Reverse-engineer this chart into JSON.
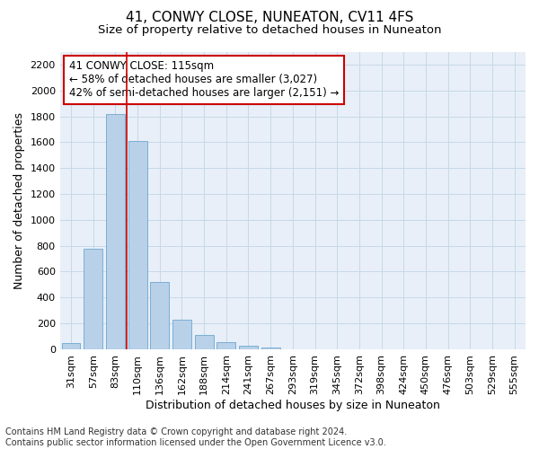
{
  "title": "41, CONWY CLOSE, NUNEATON, CV11 4FS",
  "subtitle": "Size of property relative to detached houses in Nuneaton",
  "xlabel": "Distribution of detached houses by size in Nuneaton",
  "ylabel": "Number of detached properties",
  "categories": [
    "31sqm",
    "57sqm",
    "83sqm",
    "110sqm",
    "136sqm",
    "162sqm",
    "188sqm",
    "214sqm",
    "241sqm",
    "267sqm",
    "293sqm",
    "319sqm",
    "345sqm",
    "372sqm",
    "398sqm",
    "424sqm",
    "450sqm",
    "476sqm",
    "503sqm",
    "529sqm",
    "555sqm"
  ],
  "values": [
    50,
    780,
    1820,
    1610,
    520,
    230,
    110,
    55,
    30,
    15,
    0,
    0,
    0,
    0,
    0,
    0,
    0,
    0,
    0,
    0,
    0
  ],
  "bar_color": "#b8d0e8",
  "bar_edge_color": "#7aafd4",
  "property_line_color": "#cc0000",
  "annotation_text": "41 CONWY CLOSE: 115sqm\n← 58% of detached houses are smaller (3,027)\n42% of semi-detached houses are larger (2,151) →",
  "annotation_box_color": "#ffffff",
  "annotation_box_edge_color": "#cc0000",
  "ylim": [
    0,
    2300
  ],
  "yticks": [
    0,
    200,
    400,
    600,
    800,
    1000,
    1200,
    1400,
    1600,
    1800,
    2000,
    2200
  ],
  "grid_color": "#c8d8e8",
  "background_color": "#e8eff8",
  "footer_text": "Contains HM Land Registry data © Crown copyright and database right 2024.\nContains public sector information licensed under the Open Government Licence v3.0.",
  "title_fontsize": 11,
  "subtitle_fontsize": 9.5,
  "xlabel_fontsize": 9,
  "ylabel_fontsize": 9,
  "tick_fontsize": 8,
  "annotation_fontsize": 8.5,
  "footer_fontsize": 7
}
